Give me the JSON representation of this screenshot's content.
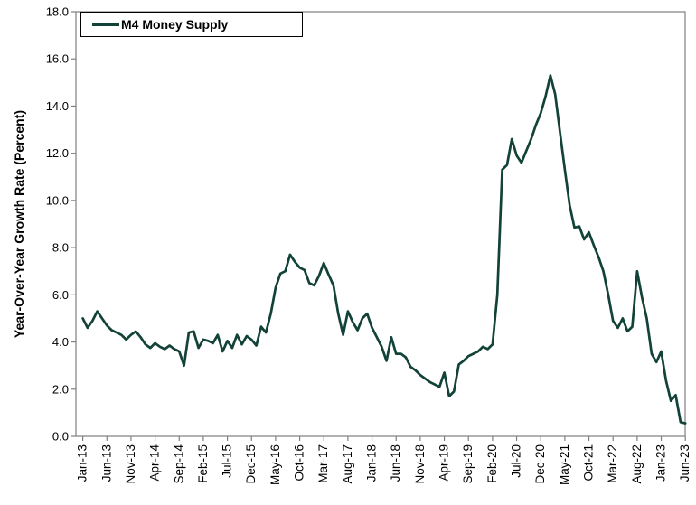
{
  "page": {
    "background": "#ffffff"
  },
  "legend": {
    "label": "M4 Money Supply",
    "position": "top-left-inside"
  },
  "y_axis": {
    "title": "Year-Over-Year Growth Rate (Percent)"
  },
  "colors": {
    "line": "#124238",
    "frame": "#7f7f7f",
    "text": "#000000",
    "background": "#ffffff"
  },
  "chart_data": {
    "type": "line",
    "title": "",
    "xlabel": "",
    "ylabel": "Year-Over-Year Growth Rate (Percent)",
    "ylim": [
      0,
      18
    ],
    "y_tick_step": 2,
    "y_tick_labels": [
      "0.0",
      "2.0",
      "4.0",
      "6.0",
      "8.0",
      "10.0",
      "12.0",
      "14.0",
      "16.0",
      "18.0"
    ],
    "grid": "off",
    "legend_position": "top-left inside plot",
    "x_start_month": "Jan-13",
    "x_end_month": "Jun-23",
    "x_tick_every_months": 5,
    "x_tick_labels": [
      "Jan-13",
      "Jun-13",
      "Nov-13",
      "Apr-14",
      "Sep-14",
      "Feb-15",
      "Jul-15",
      "Dec-15",
      "May-16",
      "Oct-16",
      "Mar-17",
      "Aug-17",
      "Jan-18",
      "Jun-18",
      "Nov-18",
      "Apr-19",
      "Sep-19",
      "Feb-20",
      "Jul-20",
      "Dec-20",
      "May-21",
      "Oct-21",
      "Mar-22",
      "Aug-22",
      "Jan-23",
      "Jun-23"
    ],
    "series": [
      {
        "name": "M4 Money Supply",
        "color": "#124238",
        "values": [
          5.0,
          4.6,
          4.9,
          5.3,
          5.0,
          4.7,
          4.5,
          4.4,
          4.3,
          4.1,
          4.3,
          4.45,
          4.2,
          3.9,
          3.75,
          3.95,
          3.8,
          3.7,
          3.85,
          3.7,
          3.6,
          3.0,
          4.4,
          4.45,
          3.75,
          4.1,
          4.05,
          3.95,
          4.3,
          3.6,
          4.05,
          3.75,
          4.3,
          3.9,
          4.25,
          4.1,
          3.85,
          4.65,
          4.4,
          5.2,
          6.3,
          6.9,
          7.0,
          7.7,
          7.4,
          7.15,
          7.05,
          6.5,
          6.4,
          6.8,
          7.35,
          6.85,
          6.4,
          5.2,
          4.3,
          5.3,
          4.85,
          4.5,
          5.0,
          5.2,
          4.6,
          4.2,
          3.8,
          3.2,
          4.2,
          3.5,
          3.5,
          3.35,
          2.95,
          2.8,
          2.6,
          2.45,
          2.3,
          2.2,
          2.1,
          2.7,
          1.7,
          1.9,
          3.05,
          3.2,
          3.4,
          3.5,
          3.6,
          3.8,
          3.7,
          3.9,
          6.0,
          11.3,
          11.5,
          12.6,
          11.9,
          11.6,
          12.1,
          12.6,
          13.2,
          13.7,
          14.4,
          15.3,
          14.5,
          12.9,
          11.3,
          9.8,
          8.85,
          8.9,
          8.35,
          8.65,
          8.1,
          7.6,
          7.0,
          6.0,
          4.9,
          4.6,
          5.0,
          4.45,
          4.65,
          7.0,
          5.9,
          5.0,
          3.5,
          3.15,
          3.6,
          2.35,
          1.5,
          1.75,
          0.6,
          0.55
        ]
      }
    ]
  }
}
